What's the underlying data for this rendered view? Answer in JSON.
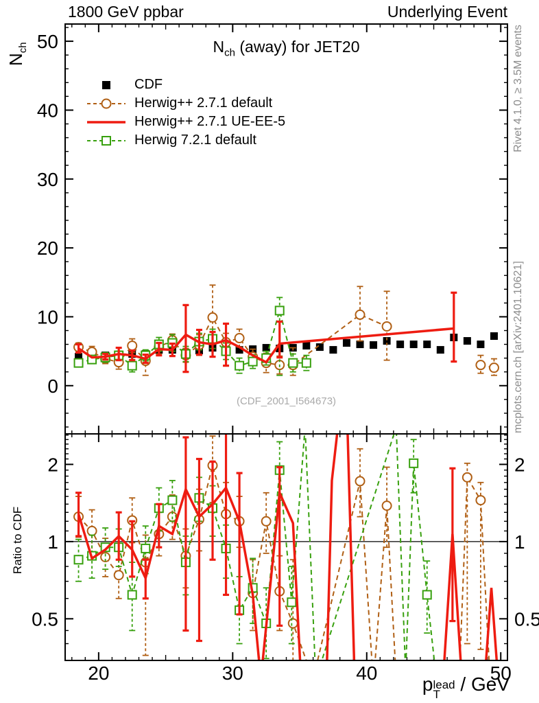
{
  "header": {
    "left": "1800 GeV ppbar",
    "right": "Underlying Event"
  },
  "titles": {
    "plot_prefix": "N",
    "plot_sub": "ch",
    "plot_rest": " (away) for JET20",
    "y_main_prefix": "N",
    "y_main_sub": "ch",
    "y_ratio": "Ratio to CDF",
    "x_base": "p",
    "x_sup": "lead",
    "x_sub": "T",
    "x_rest": " / GeV"
  },
  "side_notes": {
    "top_rotated": "Rivet 4.1.0, ≥ 3.5M events",
    "bottom_rotated": "mcplots.cern.ch [arXiv:2401.10621]"
  },
  "watermark": "(CDF_2001_I564673)",
  "colors": {
    "cdf": "#000000",
    "herwigpp_default": "#b05f14",
    "herwigpp_ueee5": "#ee1c11",
    "herwig7_default": "#38a00e",
    "frame": "#000000",
    "gray_text": "#8c8c8c",
    "watermark": "#aaaaaa"
  },
  "legend": {
    "items": [
      {
        "label": "CDF"
      },
      {
        "label": "Herwig++ 2.7.1 default"
      },
      {
        "label": "Herwig++ 2.7.1 UE-EE-5"
      },
      {
        "label": "Herwig 7.2.1 default"
      }
    ]
  },
  "chart_data": {
    "type": "line",
    "title": "Nch (away) for JET20",
    "xlabel": "pT(lead) / GeV",
    "ylabel": "Nch",
    "ratio_ylabel": "Ratio to CDF",
    "legend_position": "top-left",
    "grid": false,
    "x_axis": {
      "min": 17.5,
      "max": 50.5,
      "major_ticks": [
        20,
        30,
        40,
        50
      ],
      "medium_step": 5,
      "minor_step": 1
    },
    "main_panel": {
      "ylim": [
        -7.0,
        52.5
      ],
      "major_ticks": [
        0,
        10,
        20,
        30,
        40,
        50
      ],
      "minor_step": 2,
      "series": [
        {
          "key": "cdf",
          "name": "CDF",
          "marker": "fsquare",
          "line": "none",
          "always_marker": true,
          "points": [
            [
              18.5,
              4.2
            ],
            [
              19.5,
              4.4
            ],
            [
              20.5,
              4.4
            ],
            [
              21.5,
              4.5
            ],
            [
              22.5,
              4.6
            ],
            [
              23.5,
              4.6
            ],
            [
              24.5,
              5.2
            ],
            [
              25.5,
              5.2
            ],
            [
              26.5,
              4.8
            ],
            [
              27.5,
              5.1
            ],
            [
              28.5,
              5.5
            ],
            [
              29.5,
              5.5
            ],
            [
              30.5,
              5.2
            ],
            [
              31.5,
              5.3
            ],
            [
              32.5,
              5.5
            ],
            [
              33.5,
              5.4
            ],
            [
              34.5,
              5.5
            ],
            [
              35.5,
              5.8
            ],
            [
              36.5,
              5.6
            ],
            [
              37.5,
              5.2
            ],
            [
              38.5,
              6.2
            ],
            [
              39.5,
              6.0
            ],
            [
              40.5,
              5.9
            ],
            [
              41.5,
              6.5
            ],
            [
              42.5,
              6.0
            ],
            [
              43.5,
              6.0
            ],
            [
              44.5,
              6.0
            ],
            [
              45.5,
              5.2
            ],
            [
              46.5,
              7.0
            ],
            [
              47.5,
              6.5
            ],
            [
              48.5,
              6.0
            ],
            [
              49.5,
              7.2
            ]
          ]
        },
        {
          "key": "herwigpp_default",
          "name": "Herwig++ 2.7.1 default",
          "marker": "circle",
          "line": "dashed",
          "breaks": [
            41.5
          ],
          "points": [
            [
              18.5,
              5.6,
              5.0,
              6.2
            ],
            [
              19.5,
              4.9,
              4.1,
              5.7
            ],
            [
              20.5,
              3.9,
              3.2,
              4.6
            ],
            [
              21.5,
              3.4,
              2.4,
              4.4
            ],
            [
              22.5,
              5.8,
              4.8,
              6.8
            ],
            [
              23.5,
              3.6,
              1.5,
              4.6
            ],
            [
              24.5,
              5.6,
              4.6,
              6.6
            ],
            [
              25.5,
              6.6,
              5.7,
              7.5
            ],
            [
              26.5,
              4.4,
              3.4,
              5.4
            ],
            [
              27.5,
              5.9,
              4.4,
              7.4
            ],
            [
              28.5,
              9.9,
              6.2,
              14.6
            ],
            [
              29.5,
              6.3,
              5.0,
              7.6
            ],
            [
              30.5,
              6.9,
              5.6,
              8.2
            ],
            [
              31.5,
              4.2,
              3.1,
              5.3
            ],
            [
              32.5,
              3.3,
              1.9,
              4.7
            ],
            [
              33.5,
              3.0,
              1.7,
              4.3
            ],
            [
              34.5,
              3.0,
              1.5,
              5.5
            ],
            [
              39.5,
              10.3,
              6.5,
              14.4
            ],
            [
              41.5,
              8.6,
              3.7,
              13.7
            ],
            [
              48.5,
              3.0,
              1.8,
              4.4
            ],
            [
              49.5,
              2.6,
              1.5,
              3.9
            ]
          ]
        },
        {
          "key": "herwig7_default",
          "name": "Herwig 7.2.1 default",
          "marker": "osquare",
          "line": "dashed",
          "points": [
            [
              18.5,
              3.3,
              2.8,
              3.8
            ],
            [
              19.5,
              3.8,
              3.2,
              4.4
            ],
            [
              20.5,
              4.1,
              3.4,
              4.8
            ],
            [
              21.5,
              4.4,
              3.8,
              5.0
            ],
            [
              22.5,
              2.9,
              2.0,
              3.8
            ],
            [
              23.5,
              4.4,
              3.6,
              5.2
            ],
            [
              24.5,
              6.0,
              5.0,
              7.0
            ],
            [
              25.5,
              6.2,
              5.0,
              7.4
            ],
            [
              26.5,
              4.6,
              3.5,
              5.7
            ],
            [
              27.5,
              6.4,
              5.2,
              7.6
            ],
            [
              28.5,
              6.8,
              5.4,
              8.2
            ],
            [
              29.5,
              5.0,
              3.8,
              6.2
            ],
            [
              30.5,
              2.9,
              1.8,
              4.0
            ],
            [
              31.5,
              3.5,
              2.5,
              4.5
            ],
            [
              32.5,
              4.0,
              3.0,
              5.0
            ],
            [
              33.5,
              10.9,
              1.5,
              12.8
            ],
            [
              34.5,
              3.3,
              2.0,
              4.6
            ],
            [
              35.5,
              3.3,
              2.2,
              4.4
            ]
          ]
        },
        {
          "key": "herwigpp_ueee5",
          "name": "Herwig++ 2.7.1 UE-EE-5",
          "marker": "none",
          "line": "solid",
          "points": [
            [
              18.5,
              5.4,
              4.8,
              6.0
            ],
            [
              19.5,
              4.1
            ],
            [
              20.5,
              4.2,
              3.8,
              4.6
            ],
            [
              21.5,
              4.6,
              3.7,
              5.5
            ],
            [
              22.5,
              4.4,
              3.7,
              5.1
            ],
            [
              23.5,
              3.9,
              3.3,
              4.5
            ],
            [
              24.5,
              5.3,
              4.4,
              6.2
            ],
            [
              25.5,
              5.2,
              4.3,
              6.1
            ],
            [
              26.5,
              7.4,
              2.0,
              11.7
            ],
            [
              27.5,
              6.3,
              4.5,
              8.1
            ],
            [
              28.5,
              6.0,
              4.2,
              7.8
            ],
            [
              29.5,
              6.6,
              2.9,
              9.0
            ],
            [
              30.5,
              5.6
            ],
            [
              31.5,
              4.4
            ],
            [
              32.5,
              3.4
            ],
            [
              33.5,
              6.1,
              4.1,
              9.3
            ],
            [
              46.5,
              8.3,
              3.5,
              13.5
            ]
          ]
        }
      ]
    },
    "ratio_panel": {
      "scale": "log",
      "ylim": [
        0.344,
        2.63
      ],
      "labeled_ticks": [
        0.5,
        1,
        2
      ],
      "minor_ticks": [
        0.4,
        0.45,
        0.5,
        0.6,
        0.7,
        0.8,
        0.9,
        1.1,
        1.2,
        1.3,
        1.4,
        1.5,
        1.6,
        1.7,
        1.8,
        1.9,
        2.1,
        2.2,
        2.3,
        2.4,
        2.5,
        2.6
      ],
      "ref_line": 1,
      "series": [
        {
          "key": "herwigpp_default",
          "name": "Herwig++ 2.7.1 default",
          "marker": "circle",
          "line": "dashed",
          "points": [
            [
              18.5,
              1.25,
              1.04,
              1.5
            ],
            [
              19.5,
              1.1,
              0.9,
              1.33
            ],
            [
              20.5,
              0.87,
              0.73,
              1.03
            ],
            [
              21.5,
              0.74,
              0.6,
              0.93
            ],
            [
              22.5,
              1.21,
              0.99,
              1.48
            ],
            [
              23.5,
              0.83,
              0.36,
              1.06
            ],
            [
              24.5,
              1.07,
              0.88,
              1.3
            ],
            [
              25.5,
              1.25,
              1.02,
              1.52
            ],
            [
              26.5,
              0.88,
              0.66,
              1.12
            ],
            [
              27.5,
              1.22,
              0.92,
              1.6
            ],
            [
              28.5,
              1.98,
              1.42,
              2.58
            ],
            [
              29.5,
              1.28,
              0.95,
              1.7
            ],
            [
              30.5,
              1.2,
              0.95,
              1.5
            ],
            [
              31.5,
              0.63,
              0.45,
              0.85
            ],
            [
              32.5,
              1.2,
              0.9,
              1.55
            ],
            [
              33.5,
              0.64,
              0.45,
              0.88
            ],
            [
              34.5,
              0.48,
              0.33,
              0.85
            ],
            [
              36.0,
              0.29
            ],
            [
              39.5,
              1.72,
              1.25,
              2.3
            ],
            [
              40.5,
              0.28
            ],
            [
              41.5,
              1.38,
              0.95,
              1.95
            ],
            [
              42.2,
              0.29
            ],
            [
              46.9,
              0.29
            ],
            [
              47.5,
              1.78,
              0.4,
              2.02
            ],
            [
              48.5,
              1.45,
              0.38,
              1.7
            ],
            [
              49.2,
              0.29
            ]
          ]
        },
        {
          "key": "herwig7_default",
          "name": "Herwig 7.2.1 default",
          "marker": "osquare",
          "line": "dashed",
          "points": [
            [
              18.5,
              0.85,
              0.7,
              1.02
            ],
            [
              19.5,
              0.88,
              0.72,
              1.06
            ],
            [
              20.5,
              0.95,
              0.78,
              1.13
            ],
            [
              21.5,
              0.95,
              0.8,
              1.12
            ],
            [
              22.5,
              0.62,
              0.45,
              0.83
            ],
            [
              23.5,
              0.94,
              0.75,
              1.15
            ],
            [
              24.5,
              1.35,
              1.1,
              1.62
            ],
            [
              25.5,
              1.45,
              1.2,
              1.73
            ],
            [
              26.5,
              0.83,
              0.62,
              1.05
            ],
            [
              27.5,
              1.48,
              1.2,
              1.78
            ],
            [
              28.5,
              1.35,
              1.05,
              1.65
            ],
            [
              29.5,
              0.94,
              0.72,
              1.16
            ],
            [
              30.5,
              0.54,
              0.4,
              0.73
            ],
            [
              31.5,
              0.66,
              0.48,
              0.86
            ],
            [
              32.5,
              0.48,
              0.35,
              0.66
            ],
            [
              33.5,
              1.9,
              1.45,
              2.45
            ],
            [
              34.4,
              0.58,
              0.4,
              0.8
            ],
            [
              35.4,
              2.8
            ],
            [
              36.2,
              0.29
            ],
            [
              42.2,
              2.8
            ],
            [
              42.9,
              0.31
            ],
            [
              43.5,
              2.02,
              1.55,
              2.5
            ],
            [
              44.5,
              0.62,
              0.44,
              0.84
            ],
            [
              45.2,
              0.29
            ]
          ]
        },
        {
          "key": "herwigpp_ueee5",
          "name": "Herwig++ 2.7.1 UE-EE-5",
          "marker": "none",
          "line": "solid",
          "points": [
            [
              18.5,
              1.28,
              1.05,
              1.55
            ],
            [
              19.5,
              0.86
            ],
            [
              20.5,
              0.93
            ],
            [
              21.5,
              1.05,
              0.85,
              1.3
            ],
            [
              22.5,
              0.93,
              0.73,
              1.2
            ],
            [
              23.5,
              0.72,
              0.6,
              0.85
            ],
            [
              24.5,
              1.15,
              0.95,
              1.4
            ],
            [
              25.5,
              1.07
            ],
            [
              26.5,
              1.6,
              0.45,
              2.55
            ],
            [
              27.5,
              1.25,
              0.41,
              2.1
            ],
            [
              28.5,
              1.4,
              0.85,
              2.05
            ],
            [
              29.5,
              1.62,
              0.62,
              2.8
            ],
            [
              30.5,
              1.2,
              0.52,
              1.85
            ],
            [
              31.5,
              0.62
            ],
            [
              32.1,
              0.29
            ],
            [
              33.5,
              1.55,
              0.47,
              1.95
            ],
            [
              34.5,
              1.18
            ],
            [
              35.1,
              0.29
            ],
            [
              37.0,
              0.29
            ],
            [
              37.4,
              1.73
            ],
            [
              37.9,
              2.95
            ],
            [
              38.55,
              2.95
            ],
            [
              39.1,
              0.29
            ],
            [
              45.7,
              0.29
            ],
            [
              46.4,
              1.07,
              0.49,
              1.93
            ],
            [
              47.1,
              0.29
            ],
            [
              48.8,
              0.29
            ],
            [
              49.3,
              0.66
            ],
            [
              49.8,
              0.29
            ]
          ]
        }
      ]
    }
  }
}
